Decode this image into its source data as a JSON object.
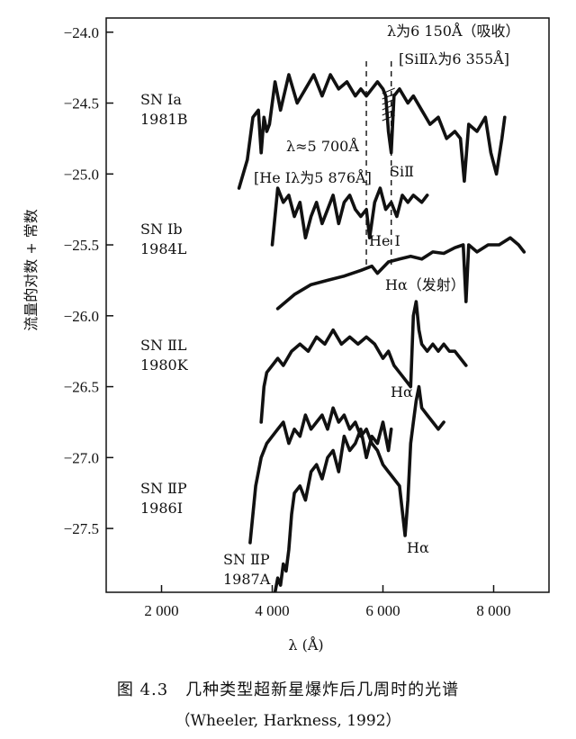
{
  "chart_data": {
    "type": "line",
    "title": "",
    "xlabel": "λ (Å)",
    "ylabel": "流量的对数 + 常数",
    "xlim": [
      1000,
      9000
    ],
    "ylim": [
      -27.95,
      -23.9
    ],
    "xticks": [
      2000,
      4000,
      6000,
      8000
    ],
    "xtick_labels": [
      "2 000",
      "4 000",
      "6 000",
      "8 000"
    ],
    "yticks": [
      -24.0,
      -24.5,
      -25.0,
      -25.5,
      -26.0,
      -26.5,
      -27.0,
      -27.5
    ],
    "ytick_labels": [
      "−24.0",
      "−24.5",
      "−25.0",
      "−25.5",
      "−26.0",
      "−26.5",
      "−27.0",
      "−27.5"
    ],
    "grid": false,
    "series": [
      {
        "name": "SN Ia 1981B",
        "x": [
          3400,
          3550,
          3650,
          3750,
          3800,
          3850,
          3900,
          3950,
          4050,
          4150,
          4300,
          4450,
          4600,
          4750,
          4900,
          5050,
          5200,
          5350,
          5500,
          5600,
          5700,
          5800,
          5900,
          6000,
          6050,
          6100,
          6150,
          6200,
          6300,
          6450,
          6550,
          6700,
          6850,
          7000,
          7150,
          7300,
          7400,
          7470,
          7550,
          7700,
          7850,
          7950,
          8050,
          8150,
          8200
        ],
        "y": [
          -25.1,
          -24.9,
          -24.6,
          -24.55,
          -24.85,
          -24.6,
          -24.7,
          -24.65,
          -24.35,
          -24.55,
          -24.3,
          -24.5,
          -24.4,
          -24.3,
          -24.45,
          -24.3,
          -24.4,
          -24.35,
          -24.45,
          -24.4,
          -24.45,
          -24.4,
          -24.35,
          -24.4,
          -24.45,
          -24.7,
          -24.85,
          -24.45,
          -24.4,
          -24.5,
          -24.45,
          -24.55,
          -24.65,
          -24.6,
          -24.75,
          -24.7,
          -24.75,
          -25.05,
          -24.65,
          -24.7,
          -24.6,
          -24.85,
          -25.0,
          -24.75,
          -24.6
        ]
      },
      {
        "name": "SN Ib 1984L",
        "x": [
          4000,
          4100,
          4200,
          4300,
          4400,
          4500,
          4600,
          4700,
          4800,
          4900,
          5000,
          5100,
          5200,
          5300,
          5400,
          5500,
          5600,
          5700,
          5760,
          5850,
          5950,
          6050,
          6150,
          6250,
          6350,
          6450,
          6550,
          6700,
          6800
        ],
        "y": [
          -25.5,
          -25.1,
          -25.2,
          -25.15,
          -25.3,
          -25.2,
          -25.45,
          -25.3,
          -25.2,
          -25.35,
          -25.25,
          -25.15,
          -25.35,
          -25.2,
          -25.15,
          -25.25,
          -25.3,
          -25.25,
          -25.45,
          -25.2,
          -25.1,
          -25.25,
          -25.2,
          -25.3,
          -25.15,
          -25.2,
          -25.15,
          -25.2,
          -25.15
        ]
      },
      {
        "name": "SN Ib 1984L (continuum)",
        "x": [
          4100,
          4400,
          4700,
          5000,
          5300,
          5600,
          5800,
          5900,
          6100,
          6300,
          6500,
          6700,
          6900,
          7100,
          7300,
          7450,
          7500,
          7550,
          7700,
          7900,
          8100,
          8300,
          8450,
          8550
        ],
        "y": [
          -25.95,
          -25.85,
          -25.78,
          -25.75,
          -25.72,
          -25.68,
          -25.65,
          -25.7,
          -25.62,
          -25.6,
          -25.58,
          -25.6,
          -25.55,
          -25.56,
          -25.52,
          -25.5,
          -25.9,
          -25.5,
          -25.55,
          -25.5,
          -25.5,
          -25.45,
          -25.5,
          -25.55
        ]
      },
      {
        "name": "SN IIL 1980K",
        "x": [
          3800,
          3850,
          3900,
          4000,
          4100,
          4200,
          4350,
          4500,
          4650,
          4800,
          4950,
          5100,
          5250,
          5400,
          5550,
          5700,
          5850,
          6000,
          6100,
          6200,
          6300,
          6400,
          6500,
          6550,
          6600,
          6650,
          6700,
          6800,
          6900,
          7000,
          7100,
          7200,
          7300,
          7400,
          7500
        ],
        "y": [
          -26.75,
          -26.5,
          -26.4,
          -26.35,
          -26.3,
          -26.35,
          -26.25,
          -26.2,
          -26.25,
          -26.15,
          -26.2,
          -26.1,
          -26.2,
          -26.15,
          -26.2,
          -26.15,
          -26.2,
          -26.3,
          -26.25,
          -26.35,
          -26.4,
          -26.45,
          -26.5,
          -26.0,
          -25.9,
          -26.1,
          -26.2,
          -26.25,
          -26.2,
          -26.25,
          -26.2,
          -26.25,
          -26.25,
          -26.3,
          -26.35
        ]
      },
      {
        "name": "SN IIP 1986I",
        "x": [
          3600,
          3700,
          3800,
          3900,
          4000,
          4100,
          4200,
          4300,
          4400,
          4500,
          4600,
          4700,
          4800,
          4900,
          5000,
          5100,
          5200,
          5300,
          5400,
          5500,
          5600,
          5700,
          5800,
          5900,
          6000,
          6100,
          6200,
          6300,
          6400,
          6450,
          6500,
          6550,
          6600,
          6650,
          6700,
          6800,
          6900,
          7000,
          7100
        ],
        "y": [
          -27.6,
          -27.2,
          -27.0,
          -26.9,
          -26.85,
          -26.8,
          -26.75,
          -26.9,
          -26.8,
          -26.85,
          -26.7,
          -26.8,
          -26.75,
          -26.7,
          -26.8,
          -26.65,
          -26.75,
          -26.7,
          -26.8,
          -26.75,
          -26.85,
          -26.8,
          -26.9,
          -26.95,
          -27.05,
          -27.1,
          -27.15,
          -27.2,
          -27.55,
          -27.3,
          -26.9,
          -26.75,
          -26.6,
          -26.5,
          -26.65,
          -26.7,
          -26.75,
          -26.8,
          -26.75
        ]
      },
      {
        "name": "SN IIP 1987A",
        "x": [
          4050,
          4100,
          4150,
          4200,
          4250,
          4300,
          4350,
          4400,
          4500,
          4600,
          4700,
          4800,
          4900,
          5000,
          5100,
          5200,
          5300,
          5400,
          5500,
          5600,
          5700,
          5800,
          5900,
          6000,
          6100,
          6150
        ],
        "y": [
          -27.95,
          -27.85,
          -27.9,
          -27.75,
          -27.8,
          -27.65,
          -27.4,
          -27.25,
          -27.2,
          -27.3,
          -27.1,
          -27.05,
          -27.15,
          -27.0,
          -26.95,
          -27.1,
          -26.85,
          -26.95,
          -26.9,
          -26.8,
          -27.0,
          -26.85,
          -26.9,
          -26.75,
          -26.95,
          -26.8
        ]
      }
    ],
    "vlines": [
      5700,
      6150
    ],
    "annotations": {
      "abs_line": "λ为6 150Å（吸收）",
      "si_line": "[SiⅡλ为6 355Å]",
      "approx": "λ≈5 700Å",
      "he_line": "[He Ⅰλ为5 876Å]",
      "si2": "SiⅡ",
      "he1": "He Ⅰ",
      "ha_emit": "Hα（发射）",
      "ha_1": "Hα",
      "ha_2": "Hα"
    },
    "labels": [
      {
        "name": "sn-ia-1981b",
        "line1": "SN Ⅰa",
        "line2": "1981B"
      },
      {
        "name": "sn-ib-1984l",
        "line1": "SN Ⅰb",
        "line2": "1984L"
      },
      {
        "name": "sn-iil-1980k",
        "line1": "SN ⅡL",
        "line2": "1980K"
      },
      {
        "name": "sn-iip-1986i",
        "line1": "SN ⅡP",
        "line2": "1986I"
      },
      {
        "name": "sn-iip-1987a",
        "line1": "SN ⅡP",
        "line2": "1987A"
      }
    ]
  },
  "caption": {
    "title": "图 4.3　几种类型超新星爆炸后几周时的光谱",
    "source": "（Wheeler, Harkness, 1992）"
  }
}
